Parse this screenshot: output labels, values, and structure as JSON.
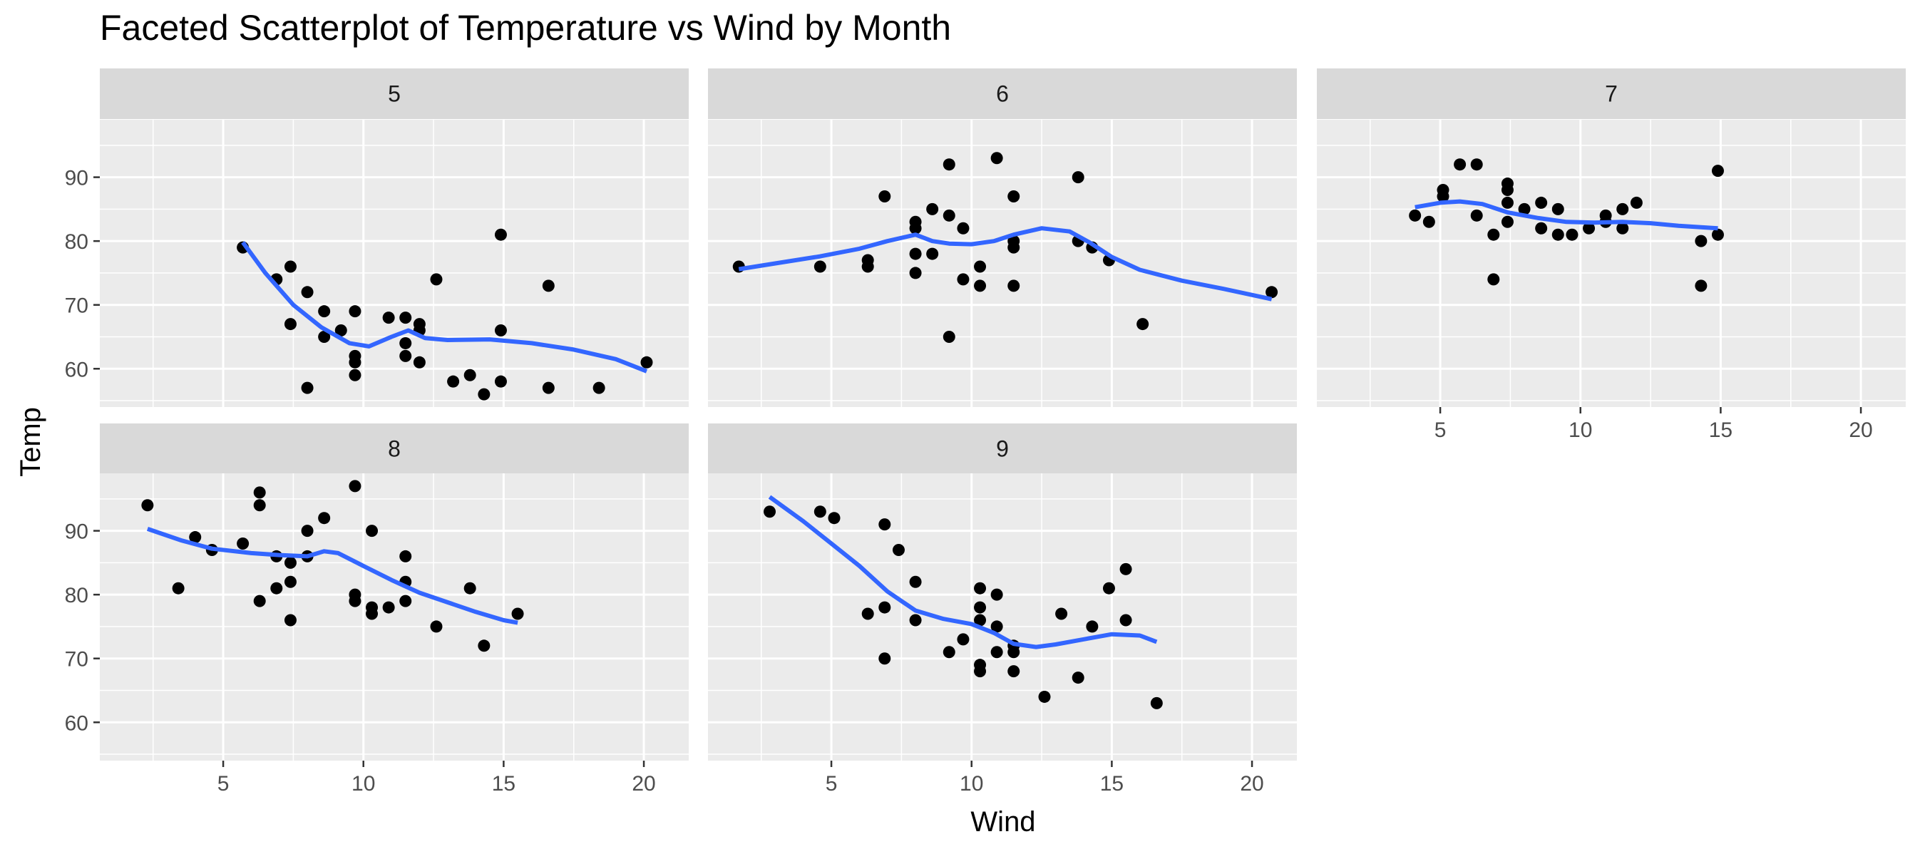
{
  "chart_data": {
    "type": "scatter",
    "title": "Faceted Scatterplot of Temperature vs Wind by Month",
    "xlabel": "Wind",
    "ylabel": "Temp",
    "xlim": [
      0.6,
      21.6
    ],
    "ylim": [
      54.0,
      99.0
    ],
    "x_ticks": [
      5,
      10,
      15,
      20
    ],
    "y_ticks": [
      60,
      70,
      80,
      90
    ],
    "grid": true,
    "colors": {
      "point": "#000000",
      "smooth": "#3366ff",
      "panel": "#ebebeb",
      "strip": "#d9d9d9",
      "grid": "#ffffff"
    },
    "facets": [
      {
        "label": "5",
        "points": [
          [
            5.7,
            79
          ],
          [
            6.9,
            74
          ],
          [
            7.4,
            76
          ],
          [
            7.4,
            67
          ],
          [
            8.0,
            72
          ],
          [
            8.0,
            57
          ],
          [
            8.6,
            69
          ],
          [
            8.6,
            65
          ],
          [
            9.2,
            66
          ],
          [
            9.7,
            69
          ],
          [
            9.7,
            62
          ],
          [
            9.7,
            61
          ],
          [
            9.7,
            59
          ],
          [
            10.9,
            68
          ],
          [
            11.5,
            68
          ],
          [
            11.5,
            64
          ],
          [
            11.5,
            62
          ],
          [
            12.0,
            67
          ],
          [
            12.0,
            66
          ],
          [
            12.0,
            61
          ],
          [
            12.6,
            74
          ],
          [
            13.2,
            58
          ],
          [
            13.8,
            59
          ],
          [
            14.3,
            56
          ],
          [
            14.9,
            81
          ],
          [
            14.9,
            66
          ],
          [
            14.9,
            58
          ],
          [
            16.6,
            73
          ],
          [
            16.6,
            57
          ],
          [
            18.4,
            57
          ],
          [
            20.1,
            61
          ]
        ],
        "smooth": [
          [
            5.7,
            79.8
          ],
          [
            6.5,
            75.0
          ],
          [
            7.5,
            70.0
          ],
          [
            8.5,
            66.5
          ],
          [
            9.5,
            64.0
          ],
          [
            10.2,
            63.5
          ],
          [
            11.0,
            65.0
          ],
          [
            11.6,
            66.0
          ],
          [
            12.2,
            64.8
          ],
          [
            13.0,
            64.5
          ],
          [
            14.5,
            64.6
          ],
          [
            16.0,
            64.0
          ],
          [
            17.5,
            63.0
          ],
          [
            19.0,
            61.5
          ],
          [
            20.1,
            59.6
          ]
        ]
      },
      {
        "label": "6",
        "points": [
          [
            1.7,
            76
          ],
          [
            4.6,
            76
          ],
          [
            6.3,
            77
          ],
          [
            6.3,
            76
          ],
          [
            6.9,
            87
          ],
          [
            8.0,
            83
          ],
          [
            8.0,
            82
          ],
          [
            8.0,
            78
          ],
          [
            8.0,
            75
          ],
          [
            8.6,
            85
          ],
          [
            8.6,
            78
          ],
          [
            9.2,
            92
          ],
          [
            9.2,
            84
          ],
          [
            9.2,
            65
          ],
          [
            9.7,
            82
          ],
          [
            9.7,
            74
          ],
          [
            10.3,
            76
          ],
          [
            10.3,
            73
          ],
          [
            10.9,
            93
          ],
          [
            11.5,
            87
          ],
          [
            11.5,
            80
          ],
          [
            11.5,
            79
          ],
          [
            11.5,
            73
          ],
          [
            13.8,
            90
          ],
          [
            13.8,
            80
          ],
          [
            14.3,
            79
          ],
          [
            14.9,
            77
          ],
          [
            16.1,
            67
          ],
          [
            20.7,
            72
          ]
        ],
        "smooth": [
          [
            1.7,
            75.6
          ],
          [
            3.0,
            76.5
          ],
          [
            4.6,
            77.6
          ],
          [
            6.0,
            78.8
          ],
          [
            7.0,
            80.0
          ],
          [
            8.0,
            81.0
          ],
          [
            8.6,
            80.0
          ],
          [
            9.2,
            79.6
          ],
          [
            10.0,
            79.5
          ],
          [
            10.8,
            80.0
          ],
          [
            11.5,
            81.0
          ],
          [
            12.5,
            82.0
          ],
          [
            13.5,
            81.5
          ],
          [
            14.2,
            79.8
          ],
          [
            15.0,
            77.5
          ],
          [
            16.0,
            75.5
          ],
          [
            17.5,
            73.8
          ],
          [
            19.0,
            72.5
          ],
          [
            20.7,
            70.9
          ]
        ]
      },
      {
        "label": "7",
        "points": [
          [
            4.1,
            84
          ],
          [
            4.6,
            83
          ],
          [
            5.1,
            88
          ],
          [
            5.1,
            87
          ],
          [
            5.7,
            92
          ],
          [
            6.3,
            92
          ],
          [
            6.3,
            84
          ],
          [
            6.9,
            81
          ],
          [
            6.9,
            74
          ],
          [
            7.4,
            89
          ],
          [
            7.4,
            88
          ],
          [
            7.4,
            86
          ],
          [
            7.4,
            83
          ],
          [
            8.0,
            85
          ],
          [
            8.6,
            86
          ],
          [
            8.6,
            82
          ],
          [
            9.2,
            85
          ],
          [
            9.2,
            81
          ],
          [
            9.7,
            81
          ],
          [
            10.3,
            82
          ],
          [
            10.9,
            84
          ],
          [
            10.9,
            83
          ],
          [
            11.5,
            85
          ],
          [
            11.5,
            82
          ],
          [
            12.0,
            86
          ],
          [
            14.3,
            80
          ],
          [
            14.3,
            73
          ],
          [
            14.9,
            91
          ],
          [
            14.9,
            81
          ]
        ],
        "smooth": [
          [
            4.1,
            85.3
          ],
          [
            5.0,
            86.0
          ],
          [
            5.7,
            86.2
          ],
          [
            6.5,
            85.8
          ],
          [
            7.4,
            84.5
          ],
          [
            8.5,
            83.6
          ],
          [
            9.5,
            83.0
          ],
          [
            10.5,
            82.9
          ],
          [
            11.5,
            83.0
          ],
          [
            12.5,
            82.8
          ],
          [
            13.5,
            82.4
          ],
          [
            14.9,
            82.0
          ]
        ]
      },
      {
        "label": "8",
        "points": [
          [
            2.3,
            94
          ],
          [
            3.4,
            81
          ],
          [
            4.0,
            89
          ],
          [
            4.6,
            87
          ],
          [
            5.7,
            88
          ],
          [
            6.3,
            96
          ],
          [
            6.3,
            94
          ],
          [
            6.3,
            79
          ],
          [
            6.9,
            86
          ],
          [
            6.9,
            81
          ],
          [
            7.4,
            85
          ],
          [
            7.4,
            82
          ],
          [
            7.4,
            76
          ],
          [
            8.0,
            90
          ],
          [
            8.0,
            86
          ],
          [
            8.6,
            92
          ],
          [
            9.7,
            97
          ],
          [
            9.7,
            80
          ],
          [
            9.7,
            79
          ],
          [
            10.3,
            90
          ],
          [
            10.3,
            78
          ],
          [
            10.3,
            77
          ],
          [
            10.9,
            78
          ],
          [
            11.5,
            86
          ],
          [
            11.5,
            82
          ],
          [
            11.5,
            79
          ],
          [
            12.6,
            75
          ],
          [
            13.8,
            81
          ],
          [
            14.3,
            72
          ],
          [
            15.5,
            77
          ]
        ],
        "smooth": [
          [
            2.3,
            90.3
          ],
          [
            3.5,
            88.5
          ],
          [
            4.6,
            87.2
          ],
          [
            6.0,
            86.5
          ],
          [
            7.0,
            86.2
          ],
          [
            8.0,
            86.0
          ],
          [
            8.6,
            86.8
          ],
          [
            9.1,
            86.5
          ],
          [
            10.0,
            84.5
          ],
          [
            11.0,
            82.3
          ],
          [
            12.0,
            80.3
          ],
          [
            13.0,
            78.8
          ],
          [
            14.0,
            77.3
          ],
          [
            15.0,
            76.0
          ],
          [
            15.5,
            75.6
          ]
        ]
      },
      {
        "label": "9",
        "points": [
          [
            2.8,
            93
          ],
          [
            4.6,
            93
          ],
          [
            5.1,
            92
          ],
          [
            6.3,
            77
          ],
          [
            6.9,
            91
          ],
          [
            6.9,
            78
          ],
          [
            6.9,
            70
          ],
          [
            7.4,
            87
          ],
          [
            8.0,
            82
          ],
          [
            8.0,
            76
          ],
          [
            9.2,
            71
          ],
          [
            9.7,
            73
          ],
          [
            10.3,
            81
          ],
          [
            10.3,
            78
          ],
          [
            10.3,
            76
          ],
          [
            10.3,
            69
          ],
          [
            10.3,
            68
          ],
          [
            10.9,
            80
          ],
          [
            10.9,
            75
          ],
          [
            10.9,
            71
          ],
          [
            11.5,
            72
          ],
          [
            11.5,
            71
          ],
          [
            11.5,
            68
          ],
          [
            12.6,
            64
          ],
          [
            13.2,
            77
          ],
          [
            13.8,
            67
          ],
          [
            14.3,
            75
          ],
          [
            14.9,
            81
          ],
          [
            15.5,
            84
          ],
          [
            15.5,
            76
          ],
          [
            16.6,
            63
          ]
        ],
        "smooth": [
          [
            2.8,
            95.3
          ],
          [
            4.0,
            91.5
          ],
          [
            5.0,
            88.0
          ],
          [
            6.0,
            84.5
          ],
          [
            7.0,
            80.5
          ],
          [
            8.0,
            77.5
          ],
          [
            9.0,
            76.2
          ],
          [
            10.0,
            75.4
          ],
          [
            10.8,
            74.0
          ],
          [
            11.5,
            72.3
          ],
          [
            12.3,
            71.8
          ],
          [
            13.0,
            72.2
          ],
          [
            14.0,
            73.0
          ],
          [
            15.0,
            73.8
          ],
          [
            16.0,
            73.6
          ],
          [
            16.6,
            72.6
          ]
        ]
      }
    ]
  }
}
